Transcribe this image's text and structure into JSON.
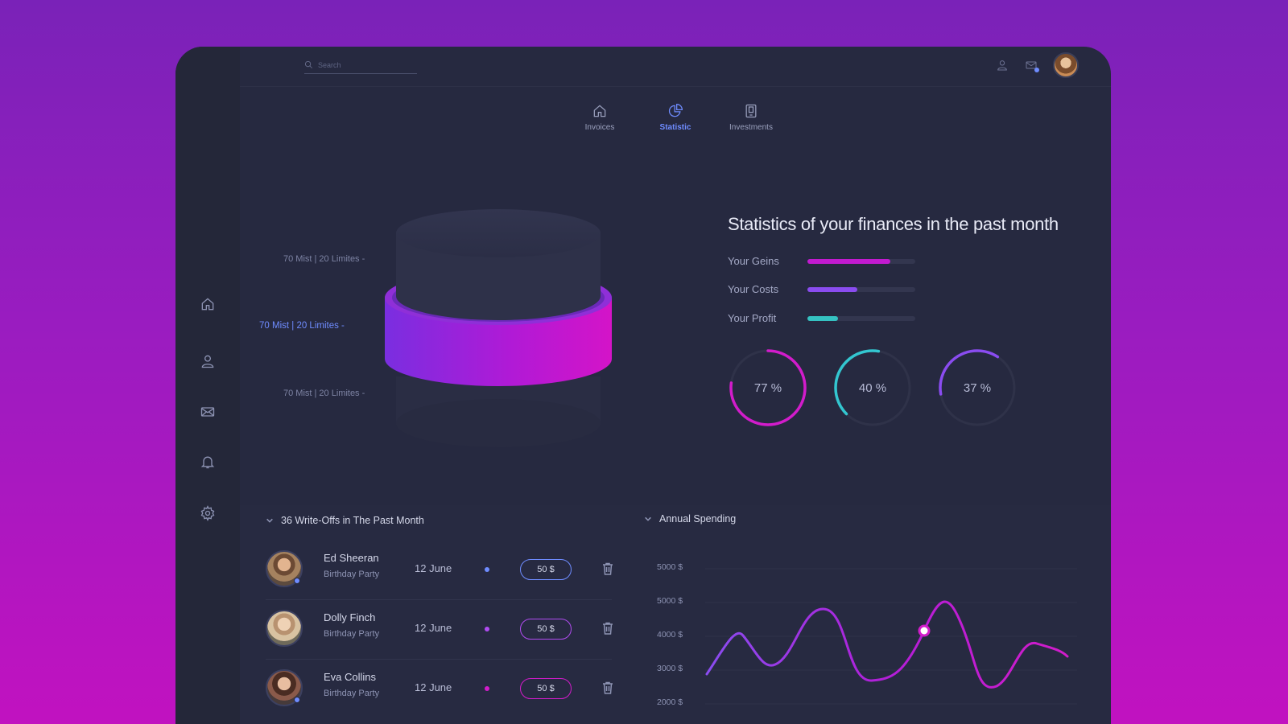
{
  "search": {
    "placeholder": "Search"
  },
  "sidebar": {
    "items": [
      {
        "icon": "home-icon"
      },
      {
        "icon": "user-icon"
      },
      {
        "icon": "mail-icon"
      },
      {
        "icon": "bell-icon"
      },
      {
        "icon": "settings-icon"
      }
    ]
  },
  "tabs": [
    {
      "label": "Invoices",
      "icon": "home-icon",
      "active": false
    },
    {
      "label": "Statistic",
      "icon": "pie-chart-icon",
      "active": true
    },
    {
      "label": "Investments",
      "icon": "tablet-icon",
      "active": false
    }
  ],
  "cylinder": {
    "labels": [
      "70 Mist | 20 Limites -",
      "70 Mist  |  20 Limites -",
      "70 Mist  |  20 Limites -"
    ],
    "active_index": 1
  },
  "stats": {
    "title": "Statistics of your finances in the past month",
    "bars": [
      {
        "label": "Your Geins",
        "value": 0.77,
        "color": "#c21ad0"
      },
      {
        "label": "Your Costs",
        "value": 0.46,
        "color": "#8a4cf0"
      },
      {
        "label": "Your Profit",
        "value": 0.28,
        "color": "#35c2c2"
      }
    ],
    "rings": [
      {
        "label": "77 %",
        "value": 0.77,
        "color": "#d21ccb"
      },
      {
        "label": "40 %",
        "value": 0.4,
        "color": "#33c6d0"
      },
      {
        "label": "37 %",
        "value": 0.37,
        "color": "#8a4cf0"
      }
    ]
  },
  "writeoffs": {
    "title": "36 Write-Offs in The Past Month",
    "rows": [
      {
        "name": "Ed Sheeran",
        "sub": "Birthday Party",
        "date": "12 June",
        "amount": "50 $",
        "mark_color": "#6f8cff",
        "amount_border": "#6f8cff"
      },
      {
        "name": "Dolly Finch",
        "sub": "Birthday Party",
        "date": "12 June",
        "amount": "50 $",
        "mark_color": "#b04cf0",
        "amount_border": "#b04cf0"
      },
      {
        "name": "Eva Collins",
        "sub": "Birthday Party",
        "date": "12 June",
        "amount": "50 $",
        "mark_color": "#d21ccb",
        "amount_border": "#d21ccb"
      }
    ]
  },
  "annual": {
    "title": "Annual Spending",
    "yticks": [
      "5000 $",
      "5000 $",
      "4000 $",
      "3000 $",
      "2000 $"
    ]
  },
  "colors": {
    "accent": "#6f8cff",
    "magenta": "#d21ccb",
    "purple": "#8a4cf0",
    "teal": "#33c6d0",
    "panel": "#262940"
  }
}
